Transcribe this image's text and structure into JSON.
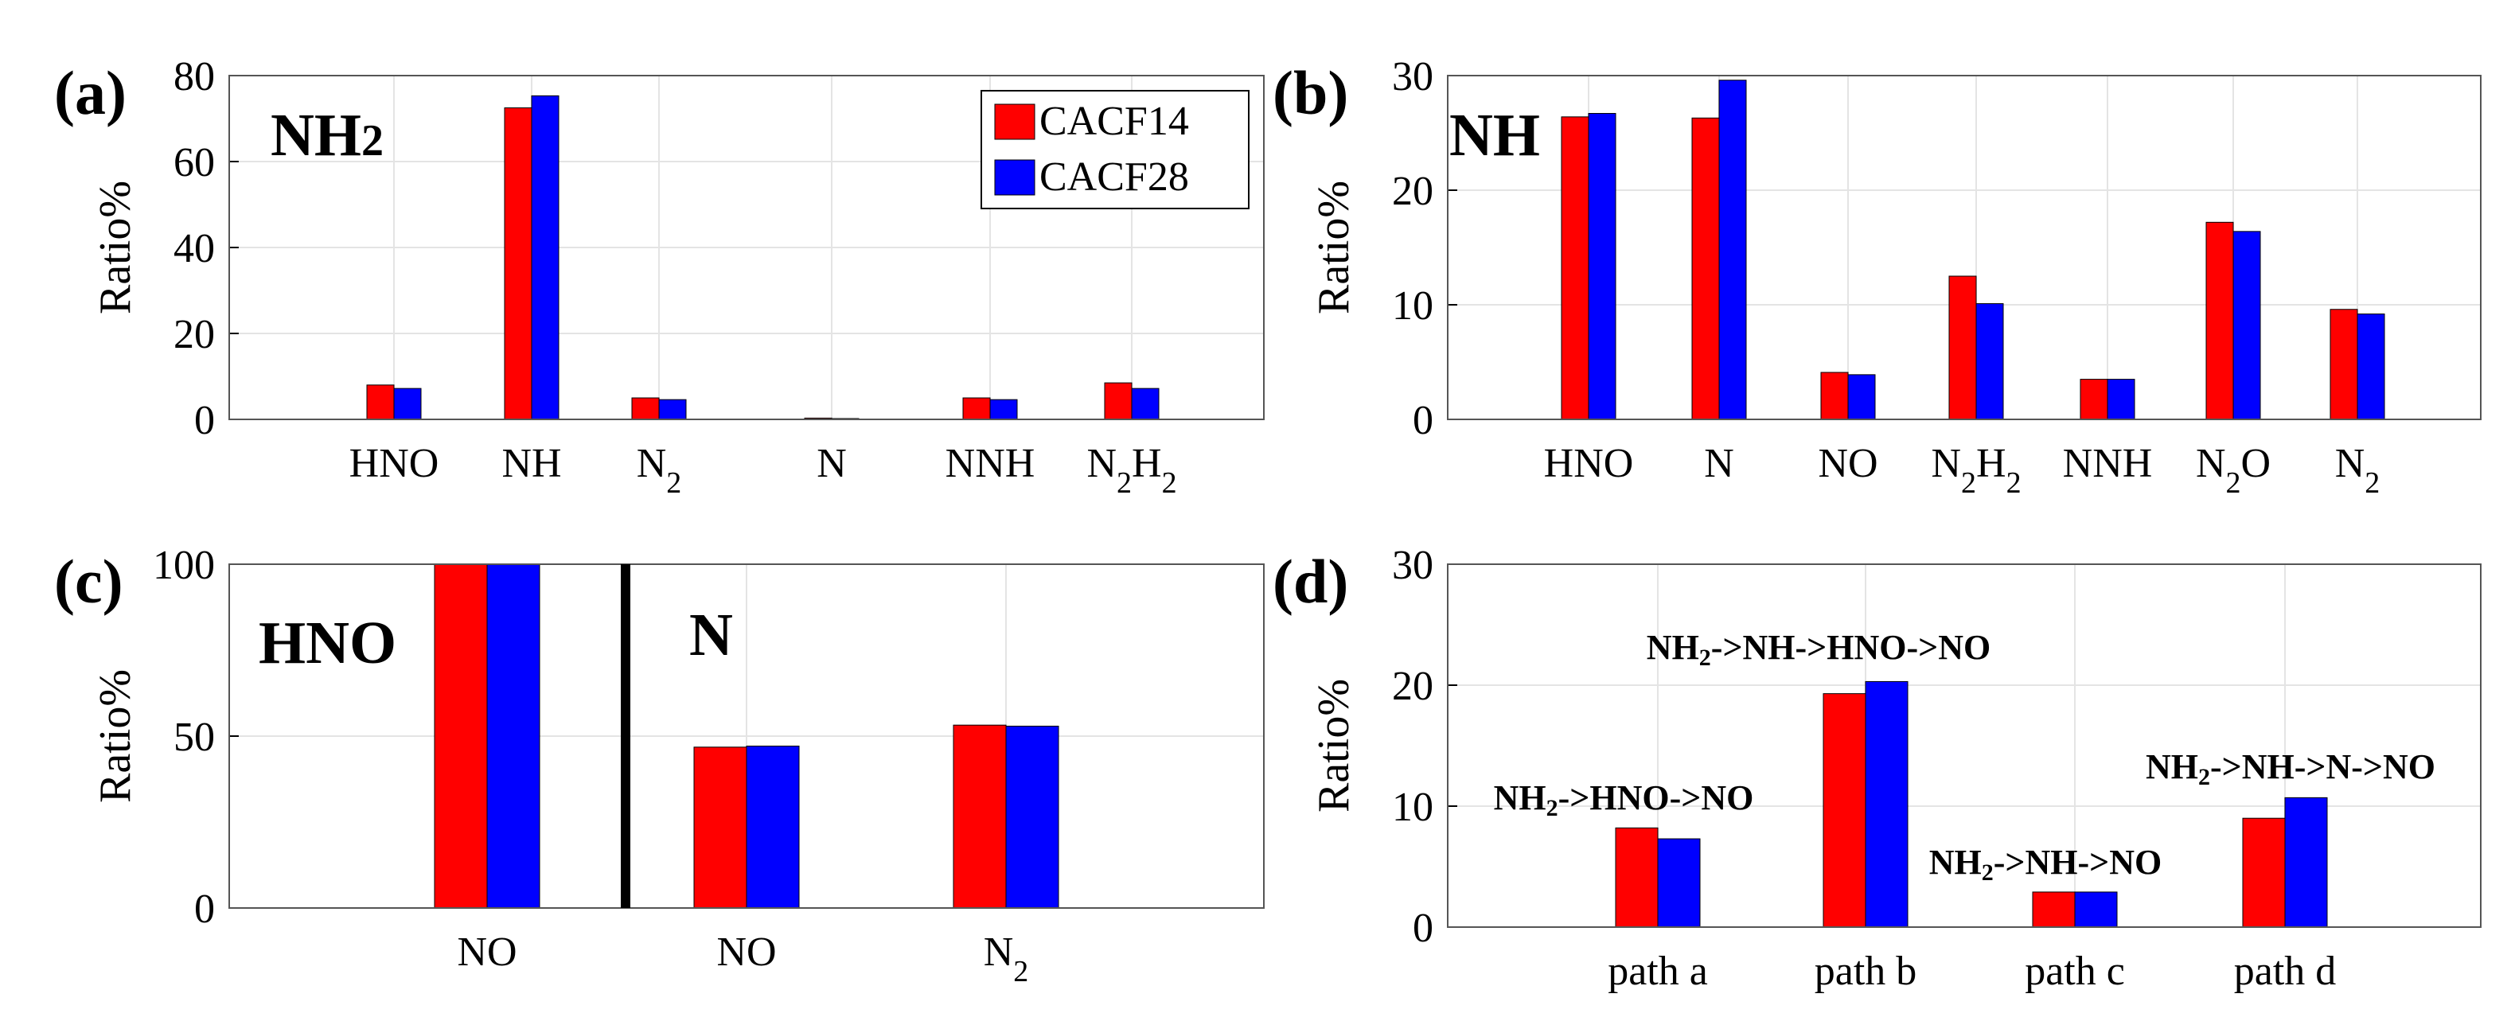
{
  "colors": {
    "series1": "#ff0000",
    "series2": "#0000ff",
    "grid": "#e4e4e4",
    "axis": "#555555"
  },
  "legend": [
    "CACF14",
    "CACF28"
  ],
  "chart_data": [
    {
      "panel": "(a)",
      "type": "bar",
      "annotation": {
        "main": "NH",
        "sub": "2"
      },
      "ylabel": "Ratio%",
      "ylim": [
        0,
        80
      ],
      "yticks": [
        "0",
        "20",
        "40",
        "60",
        "80"
      ],
      "grid": true,
      "legend_position": "top-right",
      "categories": [
        {
          "main": "HNO",
          "sub": ""
        },
        {
          "main": "NH",
          "sub": ""
        },
        {
          "main": "N",
          "sub": "2"
        },
        {
          "main": "N",
          "sub": ""
        },
        {
          "main": "NNH",
          "sub": ""
        },
        {
          "parts": [
            {
              "main": "N",
              "sub": "2"
            },
            {
              "main": "H",
              "sub": "2"
            }
          ]
        }
      ],
      "series": [
        {
          "name": "CACF14",
          "values": [
            8.0,
            72.5,
            5.0,
            0.3,
            5.0,
            8.5
          ]
        },
        {
          "name": "CACF28",
          "values": [
            7.2,
            75.3,
            4.6,
            0.2,
            4.6,
            7.2
          ]
        }
      ]
    },
    {
      "panel": "(b)",
      "type": "bar",
      "annotation": {
        "main": "NH",
        "sub": ""
      },
      "ylabel": "Ratio%",
      "ylim": [
        0,
        30
      ],
      "yticks": [
        "0",
        "10",
        "20",
        "30"
      ],
      "grid": true,
      "categories": [
        {
          "main": "HNO",
          "sub": ""
        },
        {
          "main": "N",
          "sub": ""
        },
        {
          "main": "NO",
          "sub": ""
        },
        {
          "parts": [
            {
              "main": "N",
              "sub": "2"
            },
            {
              "main": "H",
              "sub": "2"
            }
          ]
        },
        {
          "main": "NNH",
          "sub": ""
        },
        {
          "parts": [
            {
              "main": "N",
              "sub": "2"
            },
            {
              "main": "O",
              "sub": ""
            }
          ]
        },
        {
          "main": "N",
          "sub": "2"
        }
      ],
      "series": [
        {
          "name": "CACF14",
          "values": [
            26.4,
            26.3,
            4.1,
            12.5,
            3.5,
            17.2,
            9.6
          ]
        },
        {
          "name": "CACF28",
          "values": [
            26.7,
            29.6,
            3.9,
            10.1,
            3.5,
            16.4,
            9.2
          ]
        }
      ]
    },
    {
      "panel": "(c)",
      "type": "bar",
      "annotations": [
        {
          "main": "HNO",
          "sub": ""
        },
        {
          "main": "N",
          "sub": ""
        }
      ],
      "ylabel": "Ratio%",
      "ylim": [
        0,
        100
      ],
      "yticks": [
        "0",
        "50",
        "100"
      ],
      "grid": true,
      "categories": [
        {
          "main": "NO",
          "sub": ""
        },
        {
          "main": "NO",
          "sub": ""
        },
        {
          "main": "N",
          "sub": "2"
        }
      ],
      "series": [
        {
          "name": "CACF14",
          "values": [
            100,
            46.8,
            53.2
          ]
        },
        {
          "name": "CACF28",
          "values": [
            100,
            47.1,
            52.9
          ]
        }
      ]
    },
    {
      "panel": "(d)",
      "type": "bar",
      "ylabel": "Ratio%",
      "ylim": [
        0,
        30
      ],
      "yticks": [
        "0",
        "10",
        "20",
        "30"
      ],
      "grid": true,
      "categories": [
        {
          "main": "path a",
          "sub": ""
        },
        {
          "main": "path b",
          "sub": ""
        },
        {
          "main": "path c",
          "sub": ""
        },
        {
          "main": "path d",
          "sub": ""
        }
      ],
      "path_labels": [
        {
          "pre": "NH",
          "sub": "2",
          "post": "->HNO->NO"
        },
        {
          "pre": "NH",
          "sub": "2",
          "post": "->NH->HNO->NO"
        },
        {
          "pre": "NH",
          "sub": "2",
          "post": "->NH->NO"
        },
        {
          "pre": "NH",
          "sub": "2",
          "post": "->NH->N->NO"
        }
      ],
      "series": [
        {
          "name": "CACF14",
          "values": [
            8.2,
            19.3,
            2.9,
            9.0
          ]
        },
        {
          "name": "CACF28",
          "values": [
            7.3,
            20.3,
            2.9,
            10.7
          ]
        }
      ]
    }
  ]
}
